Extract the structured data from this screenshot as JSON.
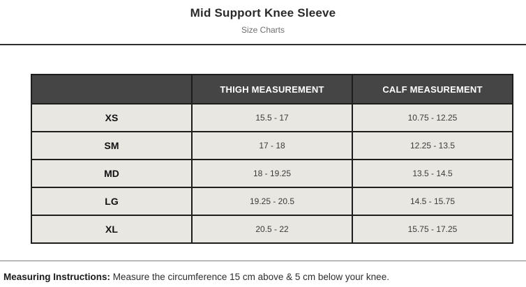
{
  "page": {
    "title": "Mid Support Knee Sleeve",
    "subtitle": "Size Charts"
  },
  "size_chart": {
    "columns": [
      "",
      "THIGH MEASUREMENT",
      "CALF MEASUREMENT"
    ],
    "rows": [
      {
        "size": "XS",
        "thigh": "15.5 - 17",
        "calf": "10.75 - 12.25"
      },
      {
        "size": "SM",
        "thigh": "17 - 18",
        "calf": "12.25 - 13.5"
      },
      {
        "size": "MD",
        "thigh": "18 - 19.25",
        "calf": "13.5 - 14.5"
      },
      {
        "size": "LG",
        "thigh": "19.25 - 20.5",
        "calf": "14.5 - 15.75"
      },
      {
        "size": "XL",
        "thigh": "20.5 - 22",
        "calf": "15.75 - 17.25"
      }
    ]
  },
  "footer": {
    "label": "Measuring Instructions:",
    "text": " Measure the circumference 15 cm above & 5 cm below your knee."
  },
  "colors": {
    "header_bg": "#454545",
    "header_text": "#ffffff",
    "row_bg": "#e9e7e2",
    "table_border": "#1d1d1d",
    "divider_top": "#2e2e2e",
    "divider_bottom": "#7c7c7c"
  }
}
